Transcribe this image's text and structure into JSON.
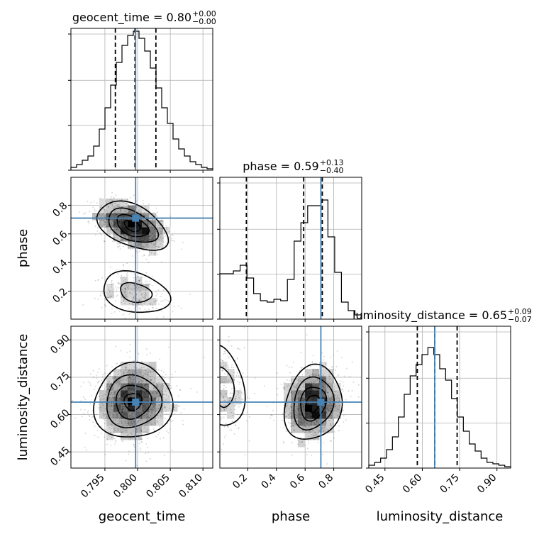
{
  "chart_data": {
    "type": "corner",
    "truth_color": "#4682b4",
    "grid": true,
    "params": [
      {
        "name": "geocent_time",
        "xlabel": "geocent_time",
        "title": {
          "prefix": "geocent_time = ",
          "value": "0.80",
          "plus": "+0.00",
          "minus": "−0.00"
        },
        "range": [
          0.7898,
          0.8115
        ],
        "ticks": [
          0.795,
          0.8,
          0.805,
          0.81
        ],
        "tick_labels": [
          "0.795",
          "0.800",
          "0.805",
          "0.810"
        ],
        "truth": 0.7997,
        "quantiles": [
          0.7966,
          0.7996,
          0.8028
        ],
        "hist_heights": [
          0.02,
          0.04,
          0.07,
          0.1,
          0.17,
          0.29,
          0.44,
          0.6,
          0.76,
          0.88,
          0.95,
          0.98,
          0.93,
          0.84,
          0.72,
          0.58,
          0.44,
          0.33,
          0.22,
          0.15,
          0.1,
          0.06,
          0.04,
          0.02,
          0.01
        ]
      },
      {
        "name": "phase",
        "xlabel": "phase",
        "ylabel": "phase",
        "title": {
          "prefix": "phase = ",
          "value": "0.59",
          "plus": "+0.13",
          "minus": "−0.40"
        },
        "range": [
          0.005,
          0.995
        ],
        "ticks": [
          0.2,
          0.4,
          0.6,
          0.8
        ],
        "tick_labels": [
          "0.2",
          "0.4",
          "0.6",
          "0.8"
        ],
        "truth": 0.71,
        "quantiles": [
          0.19,
          0.59,
          0.72
        ],
        "hist_heights": [
          0.32,
          0.32,
          0.34,
          0.38,
          0.29,
          0.18,
          0.13,
          0.12,
          0.14,
          0.13,
          0.28,
          0.55,
          0.68,
          0.8,
          0.8,
          0.84,
          0.58,
          0.33,
          0.12,
          0.06,
          0.03
        ]
      },
      {
        "name": "luminosity_distance",
        "xlabel": "luminosity_distance",
        "ylabel": "luminosity_distance",
        "title": {
          "prefix": "luminosity_distance = ",
          "value": "0.65",
          "plus": "+0.09",
          "minus": "−0.07"
        },
        "range": [
          0.385,
          0.955
        ],
        "ticks": [
          0.45,
          0.6,
          0.75,
          0.9
        ],
        "tick_labels": [
          "0.45",
          "0.60",
          "0.75",
          "0.90"
        ],
        "truth": 0.65,
        "quantiles": [
          0.58,
          0.65,
          0.74
        ],
        "hist_heights": [
          0.02,
          0.04,
          0.07,
          0.13,
          0.22,
          0.36,
          0.52,
          0.65,
          0.73,
          0.8,
          0.85,
          0.8,
          0.7,
          0.62,
          0.49,
          0.36,
          0.26,
          0.17,
          0.12,
          0.07,
          0.04,
          0.03,
          0.02,
          0.01
        ]
      }
    ],
    "pairs": [
      {
        "x": "geocent_time",
        "y": "phase"
      },
      {
        "x": "geocent_time",
        "y": "luminosity_distance"
      },
      {
        "x": "phase",
        "y": "luminosity_distance"
      }
    ]
  }
}
